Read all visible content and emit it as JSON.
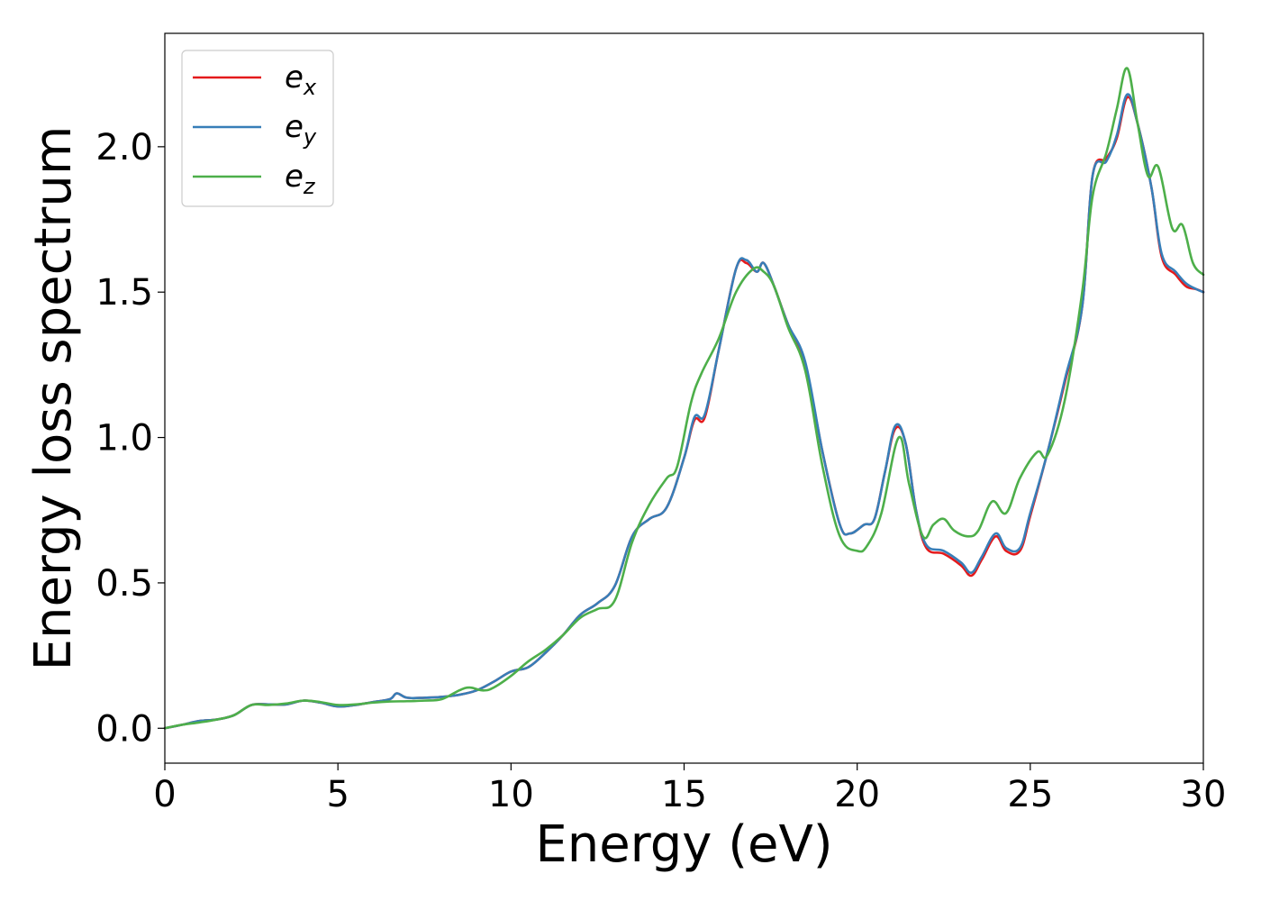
{
  "chart_data": {
    "type": "line",
    "title": "",
    "xlabel": "Energy (eV)",
    "ylabel": "Energy loss spectrum",
    "xlim": [
      0,
      30
    ],
    "ylim": [
      -0.12,
      2.39
    ],
    "xticks": [
      0,
      5,
      10,
      15,
      20,
      25,
      30
    ],
    "xtick_labels": [
      "0",
      "5",
      "10",
      "15",
      "20",
      "25",
      "30"
    ],
    "yticks": [
      0.0,
      0.5,
      1.0,
      1.5,
      2.0
    ],
    "ytick_labels": [
      "0.0",
      "0.5",
      "1.0",
      "1.5",
      "2.0"
    ],
    "grid": false,
    "legend_position": "top-left",
    "series": [
      {
        "name": "e_x",
        "legend_base": "e",
        "legend_sub": "x",
        "color": "#e41a1c",
        "x": [
          0,
          0.5,
          1,
          1.5,
          2,
          2.5,
          3,
          3.5,
          4,
          4.5,
          5,
          5.5,
          6,
          6.5,
          6.7,
          7,
          7.5,
          8,
          8.5,
          9,
          9.5,
          10,
          10.5,
          11,
          11.5,
          12,
          12.5,
          13,
          13.5,
          14,
          14.5,
          15,
          15.3,
          15.6,
          16,
          16.5,
          16.8,
          17.1,
          17.3,
          17.6,
          18,
          18.5,
          19,
          19.5,
          19.8,
          20.2,
          20.5,
          20.8,
          21.1,
          21.4,
          21.7,
          22,
          22.5,
          23,
          23.3,
          23.6,
          24,
          24.3,
          24.7,
          25,
          25.5,
          26,
          26.5,
          26.8,
          27.2,
          27.5,
          27.8,
          28.1,
          28.5,
          28.8,
          29.2,
          29.5,
          29.8,
          30
        ],
        "y": [
          0.0,
          0.012,
          0.025,
          0.03,
          0.045,
          0.08,
          0.082,
          0.082,
          0.095,
          0.088,
          0.075,
          0.08,
          0.09,
          0.1,
          0.12,
          0.105,
          0.105,
          0.108,
          0.115,
          0.13,
          0.16,
          0.195,
          0.21,
          0.26,
          0.32,
          0.39,
          0.43,
          0.49,
          0.66,
          0.72,
          0.76,
          0.93,
          1.06,
          1.07,
          1.3,
          1.58,
          1.6,
          1.57,
          1.6,
          1.52,
          1.39,
          1.25,
          0.95,
          0.7,
          0.67,
          0.7,
          0.72,
          0.88,
          1.03,
          0.98,
          0.75,
          0.62,
          0.6,
          0.56,
          0.525,
          0.58,
          0.66,
          0.61,
          0.61,
          0.73,
          0.95,
          1.19,
          1.45,
          1.9,
          1.96,
          2.03,
          2.17,
          2.08,
          1.86,
          1.62,
          1.56,
          1.52,
          1.51,
          1.5
        ]
      },
      {
        "name": "e_y",
        "legend_base": "e",
        "legend_sub": "y",
        "color": "#377eb8",
        "x": [
          0,
          0.5,
          1,
          1.5,
          2,
          2.5,
          3,
          3.5,
          4,
          4.5,
          5,
          5.5,
          6,
          6.5,
          6.7,
          7,
          7.5,
          8,
          8.5,
          9,
          9.5,
          10,
          10.5,
          11,
          11.5,
          12,
          12.5,
          13,
          13.5,
          14,
          14.5,
          15,
          15.3,
          15.6,
          16,
          16.5,
          16.8,
          17.1,
          17.3,
          17.6,
          18,
          18.5,
          19,
          19.5,
          19.8,
          20.2,
          20.5,
          20.8,
          21.1,
          21.4,
          21.7,
          22,
          22.5,
          23,
          23.3,
          23.6,
          24,
          24.3,
          24.7,
          25,
          25.5,
          26,
          26.5,
          26.8,
          27.2,
          27.5,
          27.8,
          28.1,
          28.5,
          28.8,
          29.2,
          29.5,
          29.8,
          30
        ],
        "y": [
          0.0,
          0.012,
          0.025,
          0.03,
          0.045,
          0.08,
          0.082,
          0.082,
          0.095,
          0.088,
          0.075,
          0.08,
          0.09,
          0.1,
          0.12,
          0.105,
          0.105,
          0.108,
          0.115,
          0.13,
          0.16,
          0.195,
          0.21,
          0.26,
          0.32,
          0.39,
          0.43,
          0.49,
          0.66,
          0.72,
          0.76,
          0.93,
          1.07,
          1.08,
          1.3,
          1.58,
          1.61,
          1.57,
          1.6,
          1.52,
          1.39,
          1.26,
          0.95,
          0.7,
          0.67,
          0.7,
          0.72,
          0.88,
          1.04,
          0.98,
          0.75,
          0.63,
          0.61,
          0.57,
          0.535,
          0.59,
          0.67,
          0.62,
          0.62,
          0.74,
          0.95,
          1.2,
          1.45,
          1.9,
          1.95,
          2.04,
          2.18,
          2.08,
          1.86,
          1.63,
          1.57,
          1.53,
          1.51,
          1.5
        ]
      },
      {
        "name": "e_z",
        "legend_base": "e",
        "legend_sub": "z",
        "color": "#4daf4a",
        "x": [
          0,
          0.5,
          1,
          1.5,
          2,
          2.5,
          3,
          3.5,
          4,
          4.5,
          5,
          5.5,
          6,
          6.5,
          7,
          7.5,
          8,
          8.5,
          8.8,
          9.2,
          9.5,
          10,
          10.5,
          11,
          11.5,
          12,
          12.5,
          13,
          13.5,
          14,
          14.5,
          14.8,
          15.2,
          15.5,
          16,
          16.5,
          17,
          17.3,
          17.6,
          18,
          18.5,
          19,
          19.5,
          20,
          20.3,
          20.7,
          21.2,
          21.5,
          21.9,
          22.2,
          22.5,
          22.8,
          23.2,
          23.5,
          23.9,
          24.3,
          24.7,
          25.2,
          25.5,
          26,
          26.5,
          26.8,
          27.2,
          27.5,
          27.8,
          28.1,
          28.4,
          28.7,
          29.1,
          29.4,
          29.7,
          30
        ],
        "y": [
          0.0,
          0.012,
          0.02,
          0.03,
          0.045,
          0.08,
          0.08,
          0.085,
          0.095,
          0.09,
          0.08,
          0.082,
          0.088,
          0.092,
          0.093,
          0.095,
          0.1,
          0.13,
          0.14,
          0.13,
          0.14,
          0.18,
          0.23,
          0.27,
          0.32,
          0.38,
          0.41,
          0.44,
          0.64,
          0.77,
          0.86,
          0.9,
          1.12,
          1.22,
          1.34,
          1.5,
          1.58,
          1.57,
          1.52,
          1.38,
          1.23,
          0.9,
          0.66,
          0.61,
          0.63,
          0.74,
          1.0,
          0.84,
          0.66,
          0.7,
          0.72,
          0.68,
          0.66,
          0.68,
          0.78,
          0.74,
          0.86,
          0.95,
          0.94,
          1.13,
          1.5,
          1.83,
          1.98,
          2.13,
          2.27,
          2.08,
          1.9,
          1.93,
          1.72,
          1.73,
          1.6,
          1.56
        ]
      }
    ]
  }
}
